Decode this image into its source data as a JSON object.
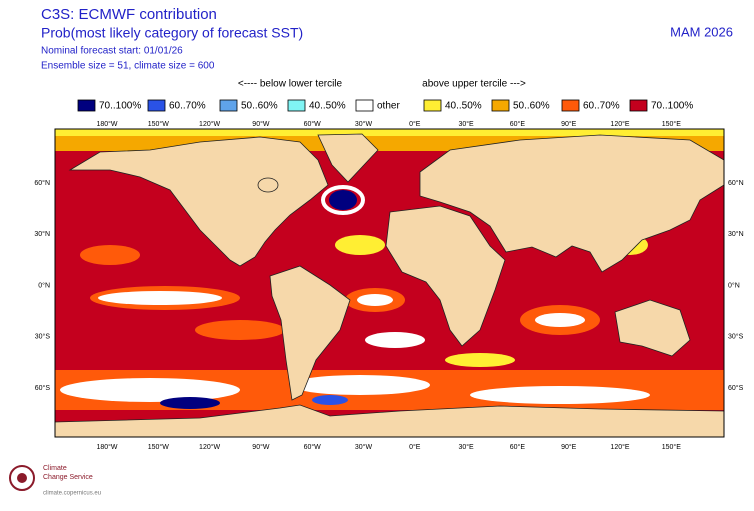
{
  "header": {
    "title": "C3S: ECMWF contribution",
    "subtitle": "Prob(most likely category of forecast SST)",
    "lines": [
      "Nominal forecast start: 01/01/26",
      "Ensemble size = 51, climate size = 600"
    ],
    "period": "MAM 2026"
  },
  "legend": {
    "below": "<---- below lower tercile",
    "above": "above upper tercile --->",
    "items": [
      {
        "label": "70..100%",
        "color": "#00007f"
      },
      {
        "label": "60..70%",
        "color": "#2a52e6"
      },
      {
        "label": "50..60%",
        "color": "#5fa3ea"
      },
      {
        "label": "40..50%",
        "color": "#80f4f4"
      },
      {
        "label": "other",
        "color": "#ffffff"
      },
      {
        "label": "40..50%",
        "color": "#ffee33"
      },
      {
        "label": "50..60%",
        "color": "#f5a800"
      },
      {
        "label": "60..70%",
        "color": "#ff5a0a"
      },
      {
        "label": "70..100%",
        "color": "#c4001e"
      }
    ]
  },
  "map": {
    "lon_labels": [
      "180°W",
      "150°W",
      "120°W",
      "90°W",
      "60°W",
      "30°W",
      "0°E",
      "30°E",
      "60°E",
      "90°E",
      "120°E",
      "150°E"
    ],
    "lat_labels": [
      "60°N",
      "30°N",
      "0°N",
      "30°S",
      "60°S"
    ]
  },
  "footer": {
    "brand": [
      "Climate",
      "Change Service"
    ],
    "url": "climate.copernicus.eu"
  }
}
